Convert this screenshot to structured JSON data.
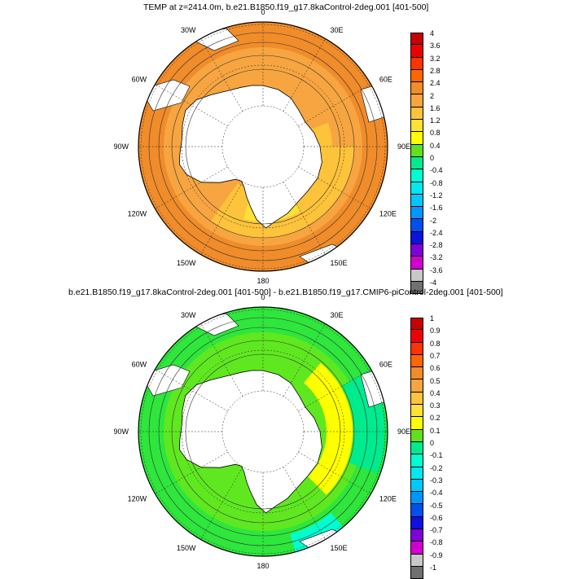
{
  "panels": [
    {
      "title": "TEMP at z=2414.0m, b.e21.B1850.f19_g17.8kaControl-2deg.001 [401-500]",
      "lon_labels": [
        "0",
        "30E",
        "60E",
        "90E",
        "120E",
        "150E",
        "180",
        "150W",
        "120W",
        "90W",
        "60W",
        "30W"
      ],
      "colorbar": {
        "labels": [
          "4",
          "3.6",
          "3.2",
          "2.8",
          "2.4",
          "2",
          "1.6",
          "1.2",
          "0.8",
          "0.4",
          "0",
          "-0.4",
          "-0.8",
          "-1.2",
          "-1.6",
          "-2",
          "-2.4",
          "-2.8",
          "-3.2",
          "-3.6",
          "-4"
        ],
        "colors": [
          "#c80000",
          "#ee0000",
          "#ff3300",
          "#ff6600",
          "#f08c2a",
          "#f7a540",
          "#fdc33a",
          "#ffe135",
          "#ffff00",
          "#60e020",
          "#00ea8e",
          "#00ffd0",
          "#00e8f0",
          "#00c8ff",
          "#0096ff",
          "#0050f0",
          "#1010e0",
          "#8000d8",
          "#d000d0",
          "#c8c8c8",
          "#707070"
        ]
      },
      "field": {
        "dominant_color": "#f08c2a",
        "inner_color": "#f7a540",
        "warm_band_color": "#fdc33a",
        "yellow_color": "#ffe135",
        "land_color": "#ffffff"
      }
    },
    {
      "title": "b.e21.B1850.f19_g17.8kaControl-2deg.001 [401-500] - b.e21.B1850.f19_g17.CMIP6-piControl-2deg.001 [401-500]",
      "lon_labels": [
        "0",
        "30E",
        "60E",
        "90E",
        "120E",
        "150E",
        "180",
        "150W",
        "120W",
        "90W",
        "60W",
        "30W"
      ],
      "colorbar": {
        "labels": [
          "1",
          "0.9",
          "0.8",
          "0.7",
          "0.6",
          "0.5",
          "0.4",
          "0.3",
          "0.2",
          "0.1",
          "0",
          "-0.1",
          "-0.2",
          "-0.3",
          "-0.4",
          "-0.5",
          "-0.6",
          "-0.7",
          "-0.8",
          "-0.9",
          "-1"
        ],
        "colors": [
          "#c80000",
          "#ee0000",
          "#ff3300",
          "#ff6600",
          "#f08c2a",
          "#f7a540",
          "#fdc33a",
          "#ffe135",
          "#ffff00",
          "#60e020",
          "#00ea8e",
          "#00ffd0",
          "#00e8f0",
          "#00c8ff",
          "#0096ff",
          "#0050f0",
          "#1010e0",
          "#8000d8",
          "#d000d0",
          "#c8c8c8",
          "#707070"
        ]
      },
      "field": {
        "dominant_color": "#2ee63c",
        "inner_color": "#5fe820",
        "warm_band_color": "#ffff00",
        "yellow_color": "#ffff00",
        "land_color": "#ffffff"
      }
    }
  ]
}
